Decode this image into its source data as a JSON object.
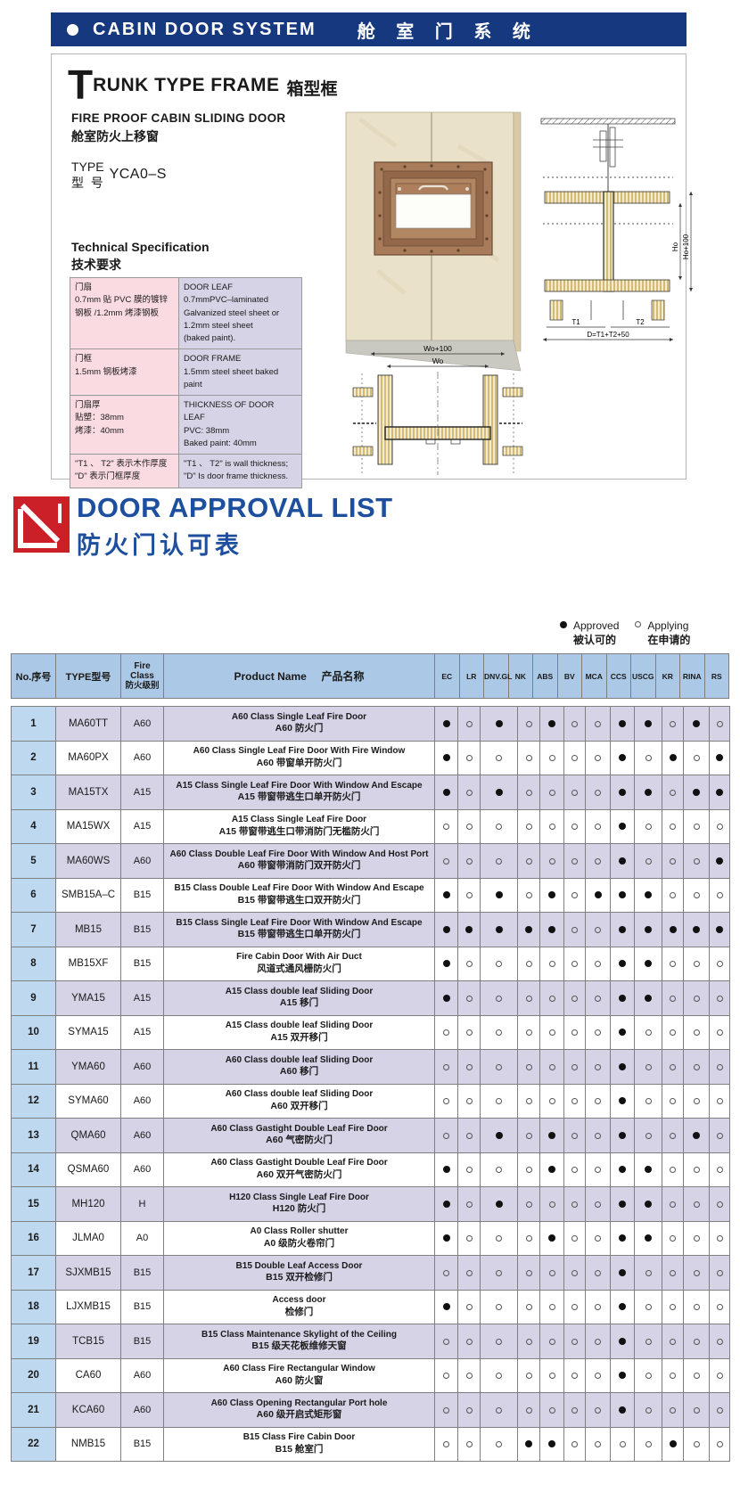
{
  "banner": {
    "bullet": "",
    "title_en": "CABIN DOOR SYSTEM",
    "title_zh": "舱 室 门 系 统"
  },
  "trunk_section": {
    "heading_initial": "T",
    "heading_rest": "RUNK TYPE FRAME",
    "heading_zh": "箱型框",
    "subtitle_en": "FIRE PROOF CABIN SLIDING DOOR",
    "subtitle_zh": "舱室防火上移窗",
    "type_label_en": "TYPE",
    "type_label_zh": "型  号",
    "type_value": "YCA0–S",
    "spec_title_en": "Technical Specification",
    "spec_title_zh": "技术要求",
    "spec_rows": [
      {
        "zh": "门扇\n0.7mm 贴 PVC 膜的镀锌\n钢板 /1.2mm 烤漆钢板",
        "en": "DOOR LEAF\n0.7mmPVC–laminated\nGalvanized steel sheet or\n1.2mm steel sheet\n(baked paint)."
      },
      {
        "zh": "门框\n1.5mm 钢板烤漆",
        "en": "DOOR FRAME\n1.5mm steel sheet baked paint"
      },
      {
        "zh": "门扇厚\n贴塑：38mm\n烤漆：40mm",
        "en": "THICKNESS OF DOOR LEAF\nPVC: 38mm\nBaked paint: 40mm"
      },
      {
        "zh": "\"T1 、 T2\" 表示木作厚度\n\"D\" 表示门框厚度",
        "en": "\"T1 、 T2\" is wall thickness;\n\"D\" Is door frame thickness."
      }
    ],
    "drawing_labels": {
      "wo100": "Wo+100",
      "wo": "Wo",
      "t1": "T1",
      "t2": "T2",
      "d": "D=T1+T2+50",
      "ho": "Ho",
      "ho100": "Ho+100"
    }
  },
  "approval_section": {
    "title_en": "DOOR APPROVAL LIST",
    "title_zh": "防火门认可表",
    "legend": {
      "approved_en": "Approved",
      "approved_zh": "被认可的",
      "applying_en": "Applying",
      "applying_zh": "在申请的"
    },
    "table": {
      "headers": {
        "no": "No.序号",
        "type": "TYPE型号",
        "fire_line1": "Fire",
        "fire_line2": "Class",
        "fire_zh": "防火级别",
        "product": "Product Name",
        "product_zh": "产品名称"
      },
      "class_columns": [
        "EC",
        "LR",
        "DNV.GL",
        "NK",
        "ABS",
        "BV",
        "MCA",
        "CCS",
        "USCG",
        "KR",
        "RINA",
        "RS"
      ],
      "rows": [
        {
          "no": "1",
          "type": "MA60TT",
          "fire_class": "A60",
          "name_en": "A60 Class Single Leaf Fire Door",
          "name_zh": "A60 防火门",
          "approvals": [
            1,
            0,
            1,
            0,
            1,
            0,
            0,
            1,
            1,
            0,
            1,
            0
          ]
        },
        {
          "no": "2",
          "type": "MA60PX",
          "fire_class": "A60",
          "name_en": "A60 Class Single Leaf Fire Door With Fire Window",
          "name_zh": "A60 带窗单开防火门",
          "approvals": [
            1,
            0,
            0,
            0,
            0,
            0,
            0,
            1,
            0,
            1,
            0,
            1
          ]
        },
        {
          "no": "3",
          "type": "MA15TX",
          "fire_class": "A15",
          "name_en": "A15 Class Single Leaf Fire Door With Window And Escape",
          "name_zh": "A15 带窗带逃生口单开防火门",
          "approvals": [
            1,
            0,
            1,
            0,
            0,
            0,
            0,
            1,
            1,
            0,
            1,
            1
          ]
        },
        {
          "no": "4",
          "type": "MA15WX",
          "fire_class": "A15",
          "name_en": "A15 Class Single Leaf Fire Door",
          "name_zh": "A15 带窗带逃生口带消防门无槛防火门",
          "approvals": [
            0,
            0,
            0,
            0,
            0,
            0,
            0,
            1,
            0,
            0,
            0,
            0
          ]
        },
        {
          "no": "5",
          "type": "MA60WS",
          "fire_class": "A60",
          "name_en": "A60 Class Double Leaf Fire Door With Window And Host Port",
          "name_zh": "A60 带窗带消防门双开防火门",
          "approvals": [
            0,
            0,
            0,
            0,
            0,
            0,
            0,
            1,
            0,
            0,
            0,
            1
          ]
        },
        {
          "no": "6",
          "type": "SMB15A–C",
          "fire_class": "B15",
          "name_en": "B15 Class Double Leaf Fire Door With Window And Escape",
          "name_zh": "B15 带窗带逃生口双开防火门",
          "approvals": [
            1,
            0,
            1,
            0,
            1,
            0,
            1,
            1,
            1,
            0,
            0,
            0
          ]
        },
        {
          "no": "7",
          "type": "MB15",
          "fire_class": "B15",
          "name_en": "B15 Class Single Leaf Fire Door With Window And Escape",
          "name_zh": "B15 带窗带逃生口单开防火门",
          "approvals": [
            1,
            1,
            1,
            1,
            1,
            0,
            0,
            1,
            1,
            1,
            1,
            1
          ]
        },
        {
          "no": "8",
          "type": "MB15XF",
          "fire_class": "B15",
          "name_en": "Fire Cabin Door With Air Duct",
          "name_zh": "风道式通风栅防火门",
          "approvals": [
            1,
            0,
            0,
            0,
            0,
            0,
            0,
            1,
            1,
            0,
            0,
            0
          ]
        },
        {
          "no": "9",
          "type": "YMA15",
          "fire_class": "A15",
          "name_en": "A15 Class double leaf Sliding Door",
          "name_zh": "A15 移门",
          "approvals": [
            1,
            0,
            0,
            0,
            0,
            0,
            0,
            1,
            1,
            0,
            0,
            0
          ]
        },
        {
          "no": "10",
          "type": "SYMA15",
          "fire_class": "A15",
          "name_en": "A15 Class double leaf Sliding Door",
          "name_zh": "A15 双开移门",
          "approvals": [
            0,
            0,
            0,
            0,
            0,
            0,
            0,
            1,
            0,
            0,
            0,
            0
          ]
        },
        {
          "no": "11",
          "type": "YMA60",
          "fire_class": "A60",
          "name_en": "A60 Class double leaf Sliding Door",
          "name_zh": "A60 移门",
          "approvals": [
            0,
            0,
            0,
            0,
            0,
            0,
            0,
            1,
            0,
            0,
            0,
            0
          ]
        },
        {
          "no": "12",
          "type": "SYMA60",
          "fire_class": "A60",
          "name_en": "A60 Class double leaf Sliding Door",
          "name_zh": "A60 双开移门",
          "approvals": [
            0,
            0,
            0,
            0,
            0,
            0,
            0,
            1,
            0,
            0,
            0,
            0
          ]
        },
        {
          "no": "13",
          "type": "QMA60",
          "fire_class": "A60",
          "name_en": "A60 Class Gastight Double Leaf Fire Door",
          "name_zh": "A60 气密防火门",
          "approvals": [
            0,
            0,
            1,
            0,
            1,
            0,
            0,
            1,
            0,
            0,
            1,
            0
          ]
        },
        {
          "no": "14",
          "type": "QSMA60",
          "fire_class": "A60",
          "name_en": "A60 Class Gastight Double Leaf Fire Door",
          "name_zh": "A60 双开气密防火门",
          "approvals": [
            1,
            0,
            0,
            0,
            1,
            0,
            0,
            1,
            1,
            0,
            0,
            0
          ]
        },
        {
          "no": "15",
          "type": "MH120",
          "fire_class": "H",
          "name_en": "H120 Class Single Leaf Fire Door",
          "name_zh": "H120 防火门",
          "approvals": [
            1,
            0,
            1,
            0,
            0,
            0,
            0,
            1,
            1,
            0,
            0,
            0
          ]
        },
        {
          "no": "16",
          "type": "JLMA0",
          "fire_class": "A0",
          "name_en": "A0 Class Roller shutter",
          "name_zh": "A0 级防火卷帘门",
          "approvals": [
            1,
            0,
            0,
            0,
            1,
            0,
            0,
            1,
            1,
            0,
            0,
            0
          ]
        },
        {
          "no": "17",
          "type": "SJXMB15",
          "fire_class": "B15",
          "name_en": "B15  Double Leaf Access Door",
          "name_zh": "B15 双开检修门",
          "approvals": [
            0,
            0,
            0,
            0,
            0,
            0,
            0,
            1,
            0,
            0,
            0,
            0
          ]
        },
        {
          "no": "18",
          "type": "LJXMB15",
          "fire_class": "B15",
          "name_en": "Access door",
          "name_zh": "检修门",
          "approvals": [
            1,
            0,
            0,
            0,
            0,
            0,
            0,
            1,
            0,
            0,
            0,
            0
          ]
        },
        {
          "no": "19",
          "type": "TCB15",
          "fire_class": "B15",
          "name_en": "B15 Class Maintenance Skylight of the Ceiling",
          "name_zh": "B15 级天花板维修天窗",
          "approvals": [
            0,
            0,
            0,
            0,
            0,
            0,
            0,
            1,
            0,
            0,
            0,
            0
          ]
        },
        {
          "no": "20",
          "type": "CA60",
          "fire_class": "A60",
          "name_en": "A60 Class Fire Rectangular Window",
          "name_zh": "A60 防火窗",
          "approvals": [
            0,
            0,
            0,
            0,
            0,
            0,
            0,
            1,
            0,
            0,
            0,
            0
          ]
        },
        {
          "no": "21",
          "type": "KCA60",
          "fire_class": "A60",
          "name_en": "A60 Class  Opening Rectangular Port hole",
          "name_zh": "A60 级开启式矩形窗",
          "approvals": [
            0,
            0,
            0,
            0,
            0,
            0,
            0,
            1,
            0,
            0,
            0,
            0
          ]
        },
        {
          "no": "22",
          "type": "NMB15",
          "fire_class": "B15",
          "name_en": "B15 Class Fire Cabin Door",
          "name_zh": "B15 舱室门",
          "approvals": [
            0,
            0,
            0,
            1,
            1,
            0,
            0,
            0,
            0,
            1,
            0,
            0
          ]
        }
      ]
    }
  }
}
